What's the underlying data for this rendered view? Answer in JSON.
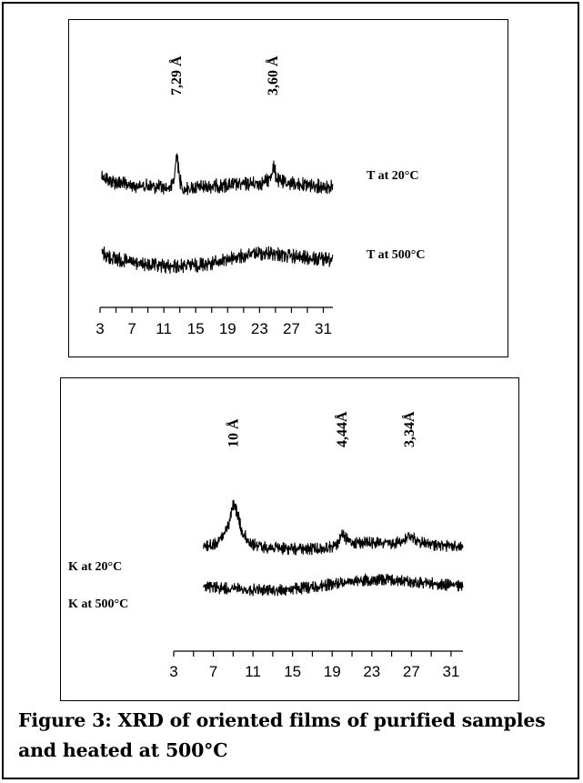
{
  "figure": {
    "caption": "Figure 3: XRD of oriented films of purified samples and heated at 500°C"
  },
  "chart_data": [
    {
      "type": "line",
      "title": "",
      "xlabel": "",
      "ylabel": "",
      "x_ticks": [
        "3",
        "7",
        "11",
        "15",
        "19",
        "23",
        "27",
        "31"
      ],
      "xlim": [
        3,
        32.2
      ],
      "grid": false,
      "series": [
        {
          "name": "T at 20°C",
          "start": 3.2,
          "x": [
            3.2,
            4,
            5,
            6,
            8,
            10,
            11.5,
            12,
            12.3,
            12.6,
            12.9,
            13.3,
            14,
            16,
            18,
            20,
            22,
            23.5,
            24.3,
            24.7,
            25.2,
            26,
            28,
            30,
            32
          ],
          "y": [
            0.88,
            0.72,
            0.6,
            0.55,
            0.5,
            0.46,
            0.42,
            0.5,
            0.78,
            1.75,
            0.8,
            0.38,
            0.4,
            0.46,
            0.5,
            0.54,
            0.57,
            0.6,
            0.75,
            1.2,
            0.72,
            0.6,
            0.55,
            0.5,
            0.46
          ],
          "peaks": [
            {
              "x": 12.6,
              "label": "7,29 Å"
            },
            {
              "x": 24.7,
              "label": "3,60 Å"
            }
          ]
        },
        {
          "name": "T at 500°C",
          "start": 3.2,
          "x": [
            3.2,
            4,
            6,
            8,
            10,
            12,
            14,
            16,
            18,
            19,
            21,
            23,
            25,
            26,
            28,
            30,
            32
          ],
          "y": [
            0.8,
            0.62,
            0.48,
            0.36,
            0.3,
            0.28,
            0.3,
            0.36,
            0.45,
            0.55,
            0.66,
            0.75,
            0.74,
            0.68,
            0.6,
            0.55,
            0.5
          ],
          "peaks": []
        }
      ]
    },
    {
      "type": "line",
      "title": "",
      "xlabel": "",
      "ylabel": "",
      "x_ticks": [
        "3",
        "7",
        "11",
        "15",
        "19",
        "23",
        "27",
        "31"
      ],
      "xlim": [
        3,
        32.2
      ],
      "grid": false,
      "series": [
        {
          "name": "K at 20°C",
          "start": 6,
          "x": [
            6,
            7,
            8,
            8.6,
            8.9,
            9.1,
            9.4,
            9.8,
            10.4,
            11,
            12,
            14,
            16,
            18,
            19.5,
            19.9,
            20.2,
            20.6,
            21.2,
            23,
            25,
            26.3,
            26.8,
            27.4,
            28.2,
            30,
            32
          ],
          "y": [
            0.3,
            0.42,
            0.75,
            1.3,
            1.95,
            2.0,
            1.7,
            1.0,
            0.6,
            0.42,
            0.32,
            0.25,
            0.22,
            0.24,
            0.38,
            0.82,
            0.7,
            0.55,
            0.5,
            0.47,
            0.45,
            0.6,
            0.8,
            0.62,
            0.45,
            0.38,
            0.35
          ],
          "peaks": [
            {
              "x": 9.0,
              "label": "10 Å"
            },
            {
              "x": 20.0,
              "label": "4,44Å"
            },
            {
              "x": 26.8,
              "label": "3,34Å"
            }
          ]
        },
        {
          "name": "K at 500°C",
          "start": 6,
          "x": [
            6,
            8,
            10,
            12,
            14,
            16,
            18,
            20,
            22,
            24,
            26,
            28,
            30,
            32
          ],
          "y": [
            0.5,
            0.45,
            0.4,
            0.36,
            0.38,
            0.45,
            0.55,
            0.68,
            0.78,
            0.8,
            0.75,
            0.68,
            0.6,
            0.55
          ],
          "peaks": []
        }
      ]
    }
  ]
}
